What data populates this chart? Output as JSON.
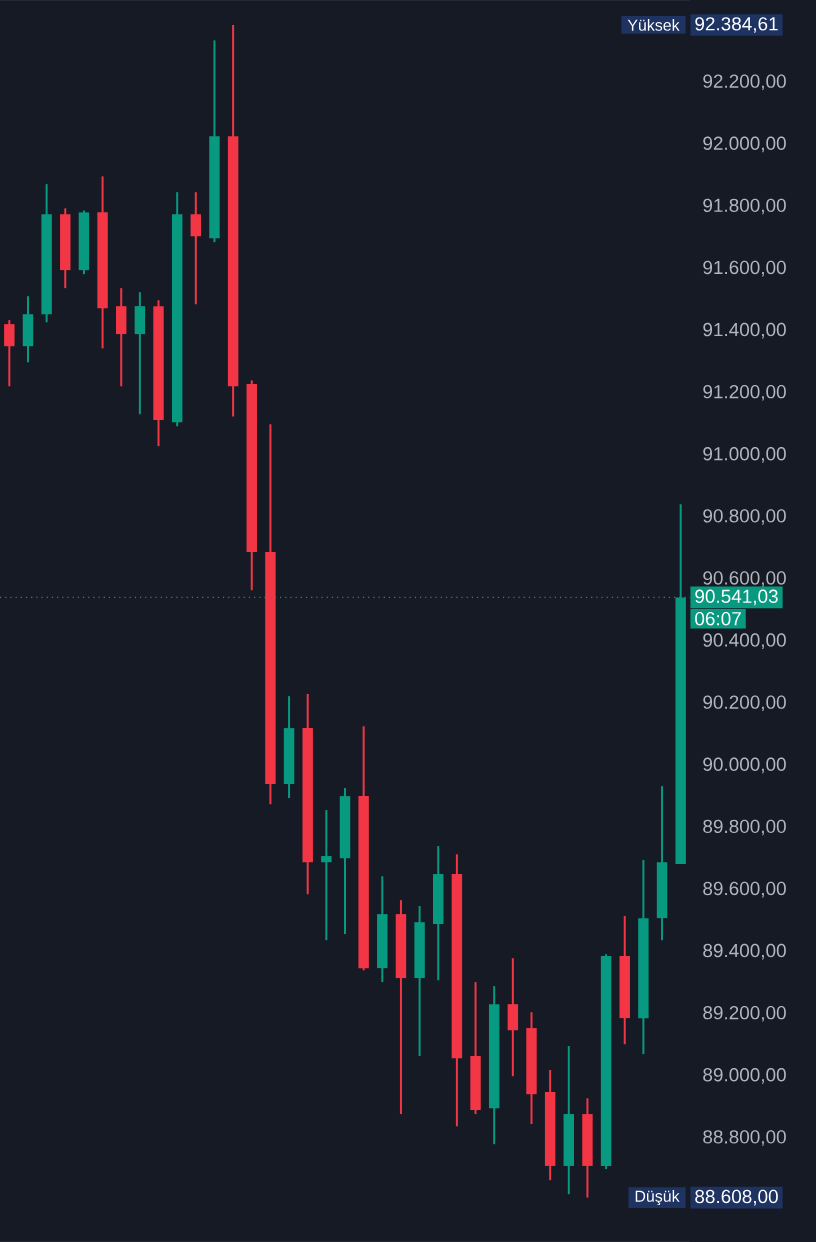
{
  "chart_data": {
    "type": "candlestick",
    "categories": [
      null,
      null,
      null,
      null,
      null,
      null,
      null,
      null,
      null,
      null,
      null,
      null,
      null,
      null,
      null,
      null,
      null,
      null,
      null,
      null,
      null,
      null,
      null,
      null,
      null,
      null,
      null,
      null,
      null,
      null,
      null,
      null,
      null,
      null,
      null,
      null,
      null
    ],
    "ohlc": [
      [
        91421,
        91434,
        91221,
        91350
      ],
      [
        91350,
        91511,
        91298,
        91453
      ],
      [
        91453,
        91872,
        91427,
        91775
      ],
      [
        91775,
        91794,
        91537,
        91595
      ],
      [
        91595,
        91787,
        91582,
        91781
      ],
      [
        91781,
        91897,
        91343,
        91472
      ],
      [
        91479,
        91537,
        91221,
        91389
      ],
      [
        91389,
        91524,
        91131,
        91479
      ],
      [
        91479,
        91498,
        91028,
        91112
      ],
      [
        91105,
        91846,
        91092,
        91775
      ],
      [
        91775,
        91846,
        91485,
        91704
      ],
      [
        91698,
        92335,
        91685,
        92026
      ],
      [
        92026,
        92384.61,
        91124,
        91221
      ],
      [
        91228,
        91240,
        90564,
        90687
      ],
      [
        90687,
        91099,
        89875,
        89940
      ],
      [
        89940,
        90223,
        89895,
        90120
      ],
      [
        90120,
        90230,
        89585,
        89688
      ],
      [
        89688,
        89856,
        89437,
        89708
      ],
      [
        89701,
        89927,
        89457,
        89901
      ],
      [
        89901,
        90126,
        89340,
        89347
      ],
      [
        89347,
        89643,
        89302,
        89521
      ],
      [
        89521,
        89566,
        88877,
        89315
      ],
      [
        89315,
        89547,
        89064,
        89495
      ],
      [
        89489,
        89740,
        89308,
        89650
      ],
      [
        89650,
        89714,
        88838,
        89057
      ],
      [
        89064,
        89302,
        88877,
        88890
      ],
      [
        88896,
        89289,
        88780,
        89231
      ],
      [
        89231,
        89379,
        88999,
        89147
      ],
      [
        89154,
        89205,
        88845,
        88941
      ],
      [
        88948,
        89019,
        88664,
        88710
      ],
      [
        88710,
        89096,
        88619,
        88877
      ],
      [
        88877,
        88928,
        88608,
        88710
      ],
      [
        88710,
        89392,
        88700,
        89386
      ],
      [
        89386,
        89515,
        89102,
        89186
      ],
      [
        89186,
        89695,
        89070,
        89508
      ],
      [
        89508,
        89933,
        89437,
        89688
      ],
      [
        89682,
        90841,
        89682,
        90541.03
      ]
    ],
    "colors": [
      "#f23645",
      "#089981",
      "#089981",
      "#f23645",
      "#089981",
      "#f23645",
      "#f23645",
      "#089981",
      "#f23645",
      "#089981",
      "#f23645",
      "#089981",
      "#f23645",
      "#f23645",
      "#f23645",
      "#089981",
      "#f23645",
      "#089981",
      "#089981",
      "#f23645",
      "#089981",
      "#f23645",
      "#089981",
      "#089981",
      "#f23645",
      "#f23645",
      "#089981",
      "#f23645",
      "#f23645",
      "#f23645",
      "#089981",
      "#f23645",
      "#089981",
      "#f23645",
      "#089981",
      "#089981",
      "#089981"
    ],
    "ylim": [
      88465,
      92465
    ],
    "yticks": [
      {
        "value": 88800,
        "label": "88.800,00"
      },
      {
        "value": 89000,
        "label": "89.000,00"
      },
      {
        "value": 89200,
        "label": "89.200,00"
      },
      {
        "value": 89400,
        "label": "89.400,00"
      },
      {
        "value": 89600,
        "label": "89.600,00"
      },
      {
        "value": 89800,
        "label": "89.800,00"
      },
      {
        "value": 90000,
        "label": "90.000,00"
      },
      {
        "value": 90200,
        "label": "90.200,00"
      },
      {
        "value": 90400,
        "label": "90.400,00"
      },
      {
        "value": 90600,
        "label": "90.600,00"
      },
      {
        "value": 90800,
        "label": "90.800,00"
      },
      {
        "value": 91000,
        "label": "91.000,00"
      },
      {
        "value": 91200,
        "label": "91.200,00"
      },
      {
        "value": 91400,
        "label": "91.400,00"
      },
      {
        "value": 91600,
        "label": "91.600,00"
      },
      {
        "value": 91800,
        "label": "91.800,00"
      },
      {
        "value": 92000,
        "label": "92.000,00"
      },
      {
        "value": 92200,
        "label": "92.200,00"
      }
    ],
    "ref_lines": [
      {
        "axis": "y",
        "value": 90541.03,
        "label": "90.541,03",
        "color": "#089981",
        "line_style": "dotted"
      }
    ],
    "annotations": [
      "Yüksek",
      "92.384,61",
      "Düşük",
      "88.608,00",
      "06:07"
    ],
    "tick_labels": "y"
  }
}
